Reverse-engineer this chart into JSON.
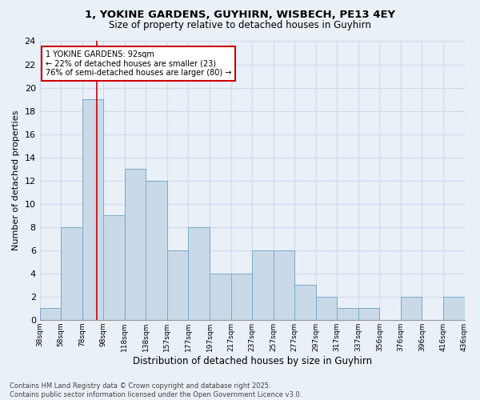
{
  "title1": "1, YOKINE GARDENS, GUYHIRN, WISBECH, PE13 4EY",
  "title2": "Size of property relative to detached houses in Guyhirn",
  "xlabel": "Distribution of detached houses by size in Guyhirn",
  "ylabel": "Number of detached properties",
  "bar_values": [
    1,
    8,
    19,
    9,
    13,
    12,
    6,
    8,
    4,
    4,
    6,
    6,
    3,
    2,
    1,
    1,
    0,
    2,
    0,
    2
  ],
  "bar_labels": [
    "38sqm",
    "58sqm",
    "78sqm",
    "98sqm",
    "118sqm",
    "138sqm",
    "157sqm",
    "177sqm",
    "197sqm",
    "217sqm",
    "237sqm",
    "257sqm",
    "277sqm",
    "297sqm",
    "317sqm",
    "337sqm",
    "356sqm",
    "376sqm",
    "396sqm",
    "416sqm",
    "436sqm"
  ],
  "bar_color": "#c9d9e8",
  "bar_edge_color": "#7aaac8",
  "ylim": [
    0,
    24
  ],
  "yticks": [
    0,
    2,
    4,
    6,
    8,
    10,
    12,
    14,
    16,
    18,
    20,
    22,
    24
  ],
  "grid_color": "#d0d8e8",
  "annotation_text": "1 YOKINE GARDENS: 92sqm\n← 22% of detached houses are smaller (23)\n76% of semi-detached houses are larger (80) →",
  "annotation_box_color": "#ffffff",
  "annotation_box_edge": "#cc0000",
  "footnote": "Contains HM Land Registry data © Crown copyright and database right 2025.\nContains public sector information licensed under the Open Government Licence v3.0.",
  "bg_color": "#eaf0f8",
  "vline_position": 2.7
}
